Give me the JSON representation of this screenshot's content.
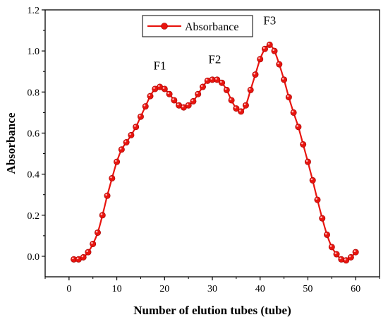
{
  "chart_data": {
    "type": "line",
    "xlabel": "Number of elution tubes (tube)",
    "ylabel": "Absorbance",
    "xlim": [
      -5,
      65
    ],
    "ylim": [
      -0.1,
      1.2
    ],
    "xticks": [
      0,
      10,
      20,
      30,
      40,
      50,
      60
    ],
    "yticks": [
      0.0,
      0.2,
      0.4,
      0.6,
      0.8,
      1.0,
      1.2
    ],
    "xtick_labels": [
      "0",
      "10",
      "20",
      "30",
      "40",
      "50",
      "60"
    ],
    "ytick_labels": [
      "0.0",
      "0.2",
      "0.4",
      "0.6",
      "0.8",
      "1.0",
      "1.2"
    ],
    "legend": {
      "position": "top-center"
    },
    "series": [
      {
        "name": "Absorbance",
        "color": "#e8150f",
        "marker": "circle",
        "x": [
          1,
          2,
          3,
          4,
          5,
          6,
          7,
          8,
          9,
          10,
          11,
          12,
          13,
          14,
          15,
          16,
          17,
          18,
          19,
          20,
          21,
          22,
          23,
          24,
          25,
          26,
          27,
          28,
          29,
          30,
          31,
          32,
          33,
          34,
          35,
          36,
          37,
          38,
          39,
          40,
          41,
          42,
          43,
          44,
          45,
          46,
          47,
          48,
          49,
          50,
          51,
          52,
          53,
          54,
          55,
          56,
          57,
          58,
          59,
          60
        ],
        "y": [
          -0.015,
          -0.015,
          -0.005,
          0.02,
          0.06,
          0.115,
          0.2,
          0.295,
          0.38,
          0.46,
          0.52,
          0.555,
          0.59,
          0.63,
          0.68,
          0.73,
          0.78,
          0.815,
          0.825,
          0.815,
          0.79,
          0.76,
          0.735,
          0.725,
          0.735,
          0.755,
          0.79,
          0.825,
          0.855,
          0.86,
          0.86,
          0.845,
          0.81,
          0.76,
          0.72,
          0.705,
          0.735,
          0.81,
          0.885,
          0.96,
          1.01,
          1.03,
          1.0,
          0.935,
          0.86,
          0.775,
          0.7,
          0.63,
          0.545,
          0.46,
          0.37,
          0.275,
          0.185,
          0.105,
          0.045,
          0.01,
          -0.015,
          -0.02,
          -0.005,
          0.02
        ]
      }
    ],
    "annotations": [
      {
        "text": "F1",
        "x": 19,
        "y": 0.91
      },
      {
        "text": "F2",
        "x": 30.5,
        "y": 0.94
      },
      {
        "text": "F3",
        "x": 42,
        "y": 1.13
      }
    ]
  }
}
